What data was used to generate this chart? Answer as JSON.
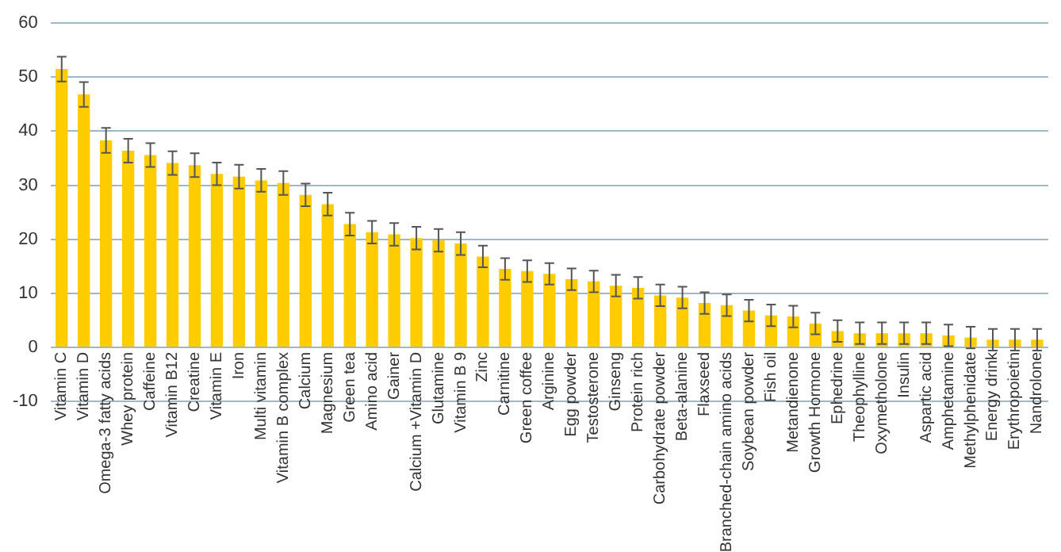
{
  "chart_data": {
    "type": "bar",
    "categories": [
      "Vitamin C",
      "Vitamin D",
      "Omega-3 fatty acids",
      "Whey protein",
      "Caffeine",
      "Vitamin B12",
      "Creatine",
      "Vitamin E",
      "Iron",
      "Multi vitamin",
      "Vitamin B complex",
      "Calcium",
      "Magnesium",
      "Green tea",
      "Amino acid",
      "Gainer",
      "Calcium +Vitamin D",
      "Glutamine",
      "Vitamin B 9",
      "Zinc",
      "Carnitine",
      "Green coffee",
      "Arginine",
      "Egg powder",
      "Testosterone",
      "Ginseng",
      "Protein rich",
      "Carbohydrate powder",
      "Beta-alanine",
      "Flaxseed",
      "Branched-chain amino acids",
      "Soybean powder",
      "Fish oil",
      "Metandienone",
      "Growth Hormone",
      "Ephedrine",
      "Theophylline",
      "Oxymetholone",
      "Insulin",
      "Aspartic acid",
      "Amphetamine",
      "Methylphenidate",
      "Energy drink",
      "Erythropoietin",
      "Nandrolone"
    ],
    "values": [
      51.5,
      46.8,
      38.3,
      36.4,
      35.6,
      34.1,
      33.7,
      32.1,
      31.6,
      30.9,
      30.4,
      28.2,
      26.5,
      22.8,
      21.3,
      20.9,
      20.2,
      19.8,
      19.2,
      16.8,
      14.5,
      14.1,
      13.6,
      12.6,
      12.2,
      11.4,
      11.0,
      9.6,
      9.2,
      8.2,
      7.8,
      6.8,
      5.9,
      5.7,
      4.4,
      3.0,
      2.6,
      2.6,
      2.6,
      2.6,
      2.2,
      1.8,
      1.4,
      1.4,
      1.4
    ],
    "errors": [
      2.3,
      2.3,
      2.3,
      2.2,
      2.2,
      2.2,
      2.2,
      2.1,
      2.2,
      2.1,
      2.2,
      2.1,
      2.1,
      2.1,
      2.1,
      2.1,
      2.1,
      2.1,
      2.1,
      2.0,
      2.0,
      2.0,
      2.0,
      2.0,
      2.0,
      2.0,
      2.0,
      2.0,
      2.0,
      2.0,
      2.0,
      2.0,
      2.0,
      2.0,
      2.0,
      2.0,
      2.0,
      2.0,
      2.0,
      2.0,
      2.0,
      2.0,
      2.0,
      2.0,
      2.0
    ],
    "color": "#ffcc00",
    "ylim": [
      -10,
      60
    ],
    "yticks": [
      -10,
      0,
      10,
      20,
      30,
      40,
      50,
      60
    ],
    "grid": "y",
    "legend": false
  }
}
